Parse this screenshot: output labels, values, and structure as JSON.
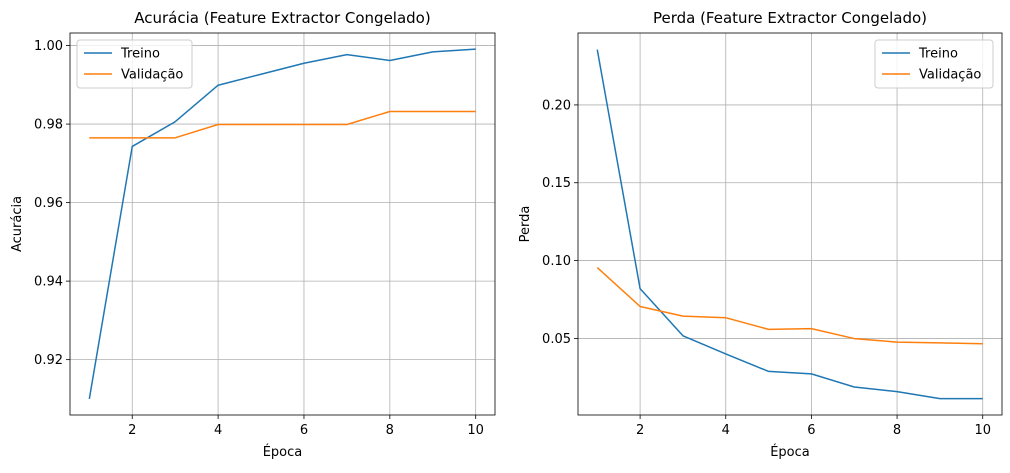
{
  "chart_data": [
    {
      "type": "line",
      "title": "Acurácia (Feature Extractor Congelado)",
      "xlabel": "Época",
      "ylabel": "Acurácia",
      "x": [
        1,
        2,
        3,
        4,
        5,
        6,
        7,
        8,
        9,
        10
      ],
      "xlim": [
        0.55,
        10.45
      ],
      "ylim": [
        0.9059,
        1.0032
      ],
      "xticks": [
        2,
        4,
        6,
        8,
        10
      ],
      "yticks": [
        0.92,
        0.94,
        0.96,
        0.98,
        1.0
      ],
      "ytick_labels": [
        "0.92",
        "0.94",
        "0.96",
        "0.98",
        "1.00"
      ],
      "grid": true,
      "legend_position": "upper-left",
      "series": [
        {
          "name": "Treino",
          "color": "#1f77b4",
          "values": [
            0.91,
            0.9743,
            0.9806,
            0.9899,
            0.9927,
            0.9955,
            0.9977,
            0.9962,
            0.9984,
            0.9991
          ]
        },
        {
          "name": "Validação",
          "color": "#ff7f0e",
          "values": [
            0.9765,
            0.9765,
            0.9765,
            0.9799,
            0.9799,
            0.9799,
            0.9799,
            0.9832,
            0.9832,
            0.9832
          ]
        }
      ]
    },
    {
      "type": "line",
      "title": "Perda (Feature Extractor Congelado)",
      "xlabel": "Época",
      "ylabel": "Perda",
      "x": [
        1,
        2,
        3,
        4,
        5,
        6,
        7,
        8,
        9,
        10
      ],
      "xlim": [
        0.55,
        10.45
      ],
      "ylim": [
        0.0008,
        0.2462
      ],
      "xticks": [
        2,
        4,
        6,
        8,
        10
      ],
      "yticks": [
        0.05,
        0.1,
        0.15,
        0.2
      ],
      "ytick_labels": [
        "0.05",
        "0.10",
        "0.15",
        "0.20"
      ],
      "grid": true,
      "legend_position": "upper-right",
      "series": [
        {
          "name": "Treino",
          "color": "#1f77b4",
          "values": [
            0.2355,
            0.082,
            0.0517,
            0.04,
            0.0288,
            0.0272,
            0.0188,
            0.0158,
            0.0113,
            0.0113
          ]
        },
        {
          "name": "Validação",
          "color": "#ff7f0e",
          "values": [
            0.0955,
            0.0705,
            0.0643,
            0.0633,
            0.0558,
            0.0563,
            0.0499,
            0.0476,
            0.0471,
            0.0466
          ]
        }
      ]
    }
  ]
}
